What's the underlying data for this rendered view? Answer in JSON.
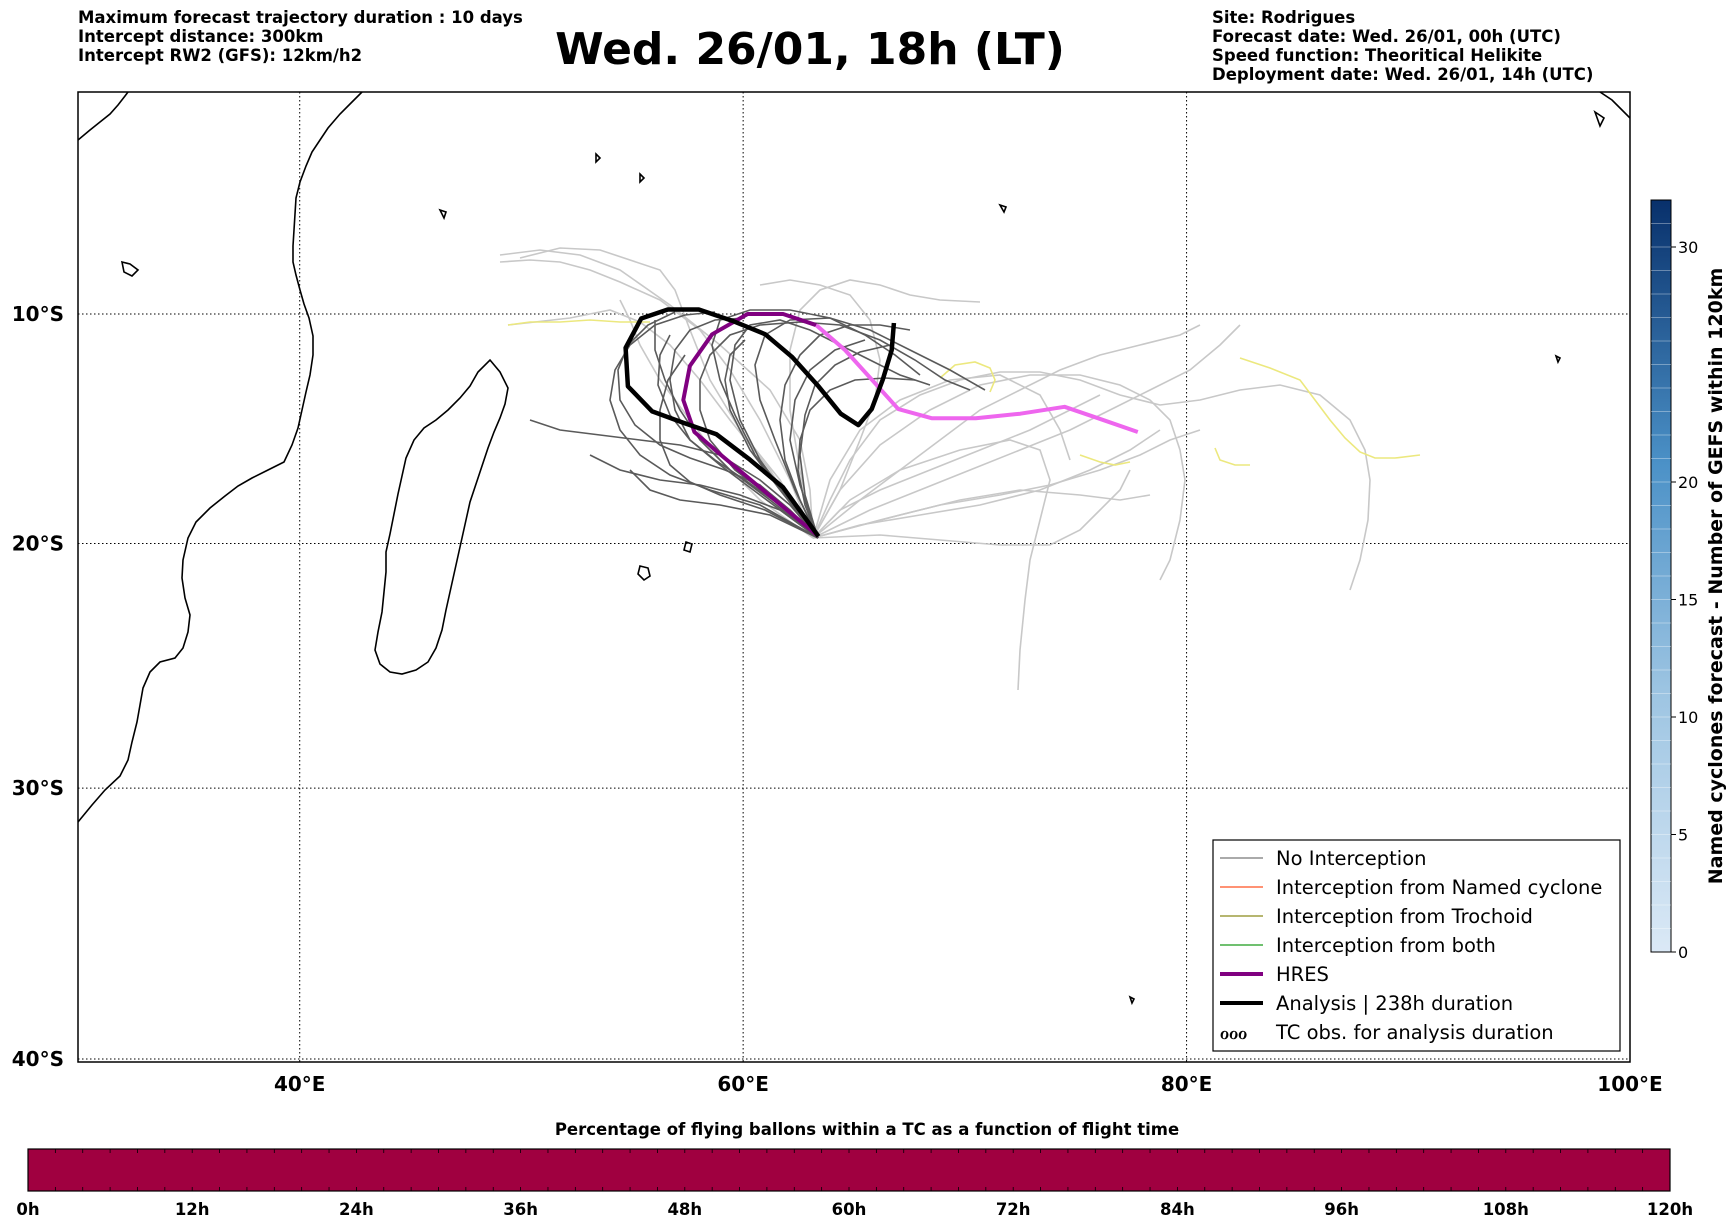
{
  "header_left": [
    "Maximum forecast trajectory duration : 10 days",
    "Intercept distance: 300km",
    "Intercept RW2 (GFS):  12km/h2"
  ],
  "title": "Wed. 26/01, 18h (LT)",
  "header_right": [
    "Site: Rodrigues",
    "Forecast date: Wed. 26/01, 00h (UTC)",
    "Speed function: Theoritical Helikite",
    "Deployment date: Wed. 26/01, 14h (UTC)"
  ],
  "map": {
    "lon_range": [
      30,
      100
    ],
    "lat_range": [
      -40,
      -1
    ],
    "lon_ticks": [
      {
        "value": 40,
        "label": "40°E"
      },
      {
        "value": 60,
        "label": "60°E"
      },
      {
        "value": 80,
        "label": "80°E"
      },
      {
        "value": 100,
        "label": "100°E"
      }
    ],
    "lat_ticks": [
      {
        "value": -10,
        "label": "10°S"
      },
      {
        "value": -20,
        "label": "20°S"
      },
      {
        "value": -30,
        "label": "30°S"
      },
      {
        "value": -40,
        "label": "40°S"
      }
    ],
    "grid": true,
    "launch_site": [
      63.4,
      -19.7
    ],
    "colors": {
      "no_interception": "#555555",
      "ensemble_light": "#c8c8c8",
      "yellow_tracks": "#eeea8a",
      "hres": "#800080",
      "hres_forecast": "#ee66ee",
      "analysis": "#000000"
    }
  },
  "chart_data": {
    "type": "line",
    "x_unit": "longitude (°E)",
    "y_unit": "latitude (°)",
    "series": [
      {
        "name": "HRES",
        "points": [
          [
            63.4,
            -19.7
          ],
          [
            61.0,
            -17.8
          ],
          [
            59.0,
            -16.2
          ],
          [
            57.8,
            -15.2
          ],
          [
            57.3,
            -13.8
          ],
          [
            57.6,
            -12.3
          ],
          [
            58.6,
            -10.9
          ],
          [
            60.2,
            -10.0
          ],
          [
            61.8,
            -10.0
          ],
          [
            63.3,
            -10.5
          ],
          [
            64.6,
            -11.6
          ],
          [
            65.8,
            -12.9
          ],
          [
            67.0,
            -14.2
          ],
          [
            68.5,
            -14.6
          ],
          [
            70.5,
            -14.6
          ],
          [
            72.5,
            -14.4
          ],
          [
            74.5,
            -14.1
          ],
          [
            76.0,
            -14.6
          ],
          [
            77.8,
            -15.2
          ]
        ]
      },
      {
        "name": "Analysis | 238h duration",
        "points": [
          [
            63.4,
            -19.7
          ],
          [
            61.8,
            -17.6
          ],
          [
            60.3,
            -16.4
          ],
          [
            58.8,
            -15.3
          ],
          [
            57.3,
            -14.8
          ],
          [
            55.9,
            -14.3
          ],
          [
            54.8,
            -13.2
          ],
          [
            54.7,
            -11.5
          ],
          [
            55.4,
            -10.2
          ],
          [
            56.6,
            -9.8
          ],
          [
            58.0,
            -9.8
          ],
          [
            59.5,
            -10.3
          ],
          [
            61.0,
            -10.9
          ],
          [
            62.2,
            -11.9
          ],
          [
            63.4,
            -13.2
          ],
          [
            64.4,
            -14.4
          ],
          [
            65.2,
            -14.9
          ],
          [
            65.8,
            -14.2
          ],
          [
            66.3,
            -12.9
          ],
          [
            66.7,
            -11.6
          ],
          [
            66.8,
            -10.4
          ]
        ]
      }
    ]
  },
  "legend": {
    "items": [
      {
        "label": "No Interception",
        "color": "#777777",
        "width": 1.2
      },
      {
        "label": "Interception from Named cyclone",
        "color": "#ff5020",
        "width": 1.2
      },
      {
        "label": "Interception from Trochoid",
        "color": "#8b8b1a",
        "width": 1.2
      },
      {
        "label": "Interception from both",
        "color": "#1a9a1a",
        "width": 1.2
      },
      {
        "label": "HRES",
        "color": "#800080",
        "width": 4
      },
      {
        "label": "Analysis | 238h duration",
        "color": "#000000",
        "width": 4
      },
      {
        "label": "TC obs. for analysis duration",
        "symbol": "ℴℴℴ"
      }
    ]
  },
  "colorbar_right": {
    "title": "Named cyclones forecast - Number of GEFS within 120km",
    "min": 0,
    "max": 32,
    "ticks": [
      0,
      5,
      10,
      15,
      20,
      30
    ],
    "color_low": "#dbe9f6",
    "color_high": "#08306b"
  },
  "colorbar_bottom": {
    "title": "Percentage of flying ballons within a TC as a function of flight time",
    "ticks": [
      "0h",
      "12h",
      "24h",
      "36h",
      "48h",
      "60h",
      "72h",
      "84h",
      "96h",
      "108h",
      "120h"
    ],
    "fill_color": "#a00040"
  }
}
